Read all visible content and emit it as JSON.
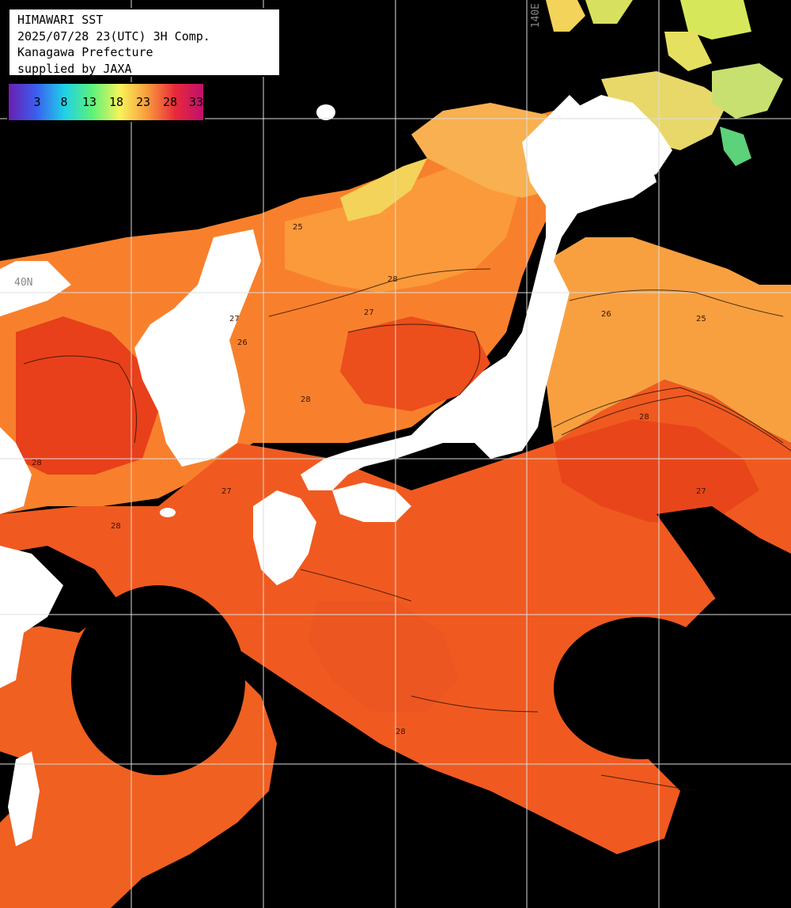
{
  "title": {
    "line1": "HIMAWARI SST",
    "line2": "2025/07/28 23(UTC) 3H Comp.",
    "line3": "Kanagawa Prefecture",
    "line4": "supplied by JAXA"
  },
  "colorbar": {
    "ticks": [
      "3",
      "8",
      "13",
      "18",
      "23",
      "28",
      "33"
    ],
    "colors": [
      "#6a1fb0",
      "#3a5ff0",
      "#1fd0e8",
      "#5cf27a",
      "#f7f35a",
      "#f89a3c",
      "#e8283a",
      "#c0106e"
    ]
  },
  "grid": {
    "lon_label": "140E",
    "lat_label": "40N"
  },
  "map": {
    "background": "#000000",
    "land": "#ffffff",
    "sst_colors": {
      "cool": "#d6e85a",
      "mild": "#f7c35a",
      "warm": "#f8802c",
      "hot": "#e8401a",
      "hottest": "#d8200e"
    },
    "contour_labels": [
      "28",
      "27",
      "28",
      "25",
      "26",
      "27",
      "28",
      "27",
      "28",
      "28",
      "25",
      "26",
      "27",
      "28"
    ]
  }
}
